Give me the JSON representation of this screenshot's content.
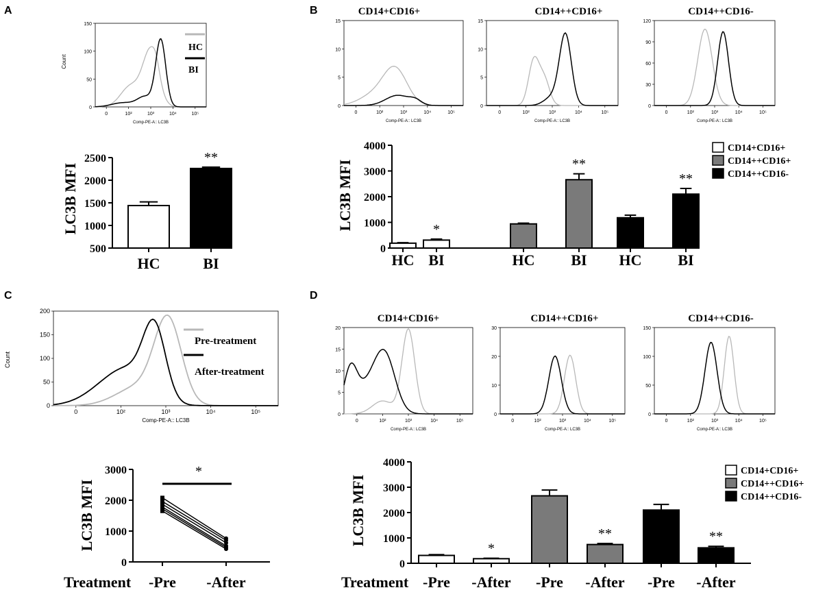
{
  "colors": {
    "white_bar": "#ffffff",
    "gray_bar": "#7a7a7a",
    "black_bar": "#000000",
    "hc_line": "#b8b8b8",
    "bi_line": "#000000"
  },
  "panels": {
    "A": {
      "label": "A"
    },
    "B": {
      "label": "B"
    },
    "C": {
      "label": "C"
    },
    "D": {
      "label": "D"
    }
  },
  "common": {
    "count_label": "Count",
    "comp_label": "Comp-PE-A:: LC3B",
    "mfi_label": "LC3B MFI",
    "treatment_label": "Treatment"
  },
  "legends": {
    "cd_plus_plus": "CD14+CD16+",
    "cd_pp_plus": "CD14++CD16+",
    "cd_pp_minus": "CD14++CD16-",
    "hc": "HC",
    "bi": "BI",
    "pre": "Pre-treatment",
    "after": "After-treatment"
  },
  "chart_data": [
    {
      "id": "A_hist",
      "type": "line",
      "title": "",
      "xlabel": "Comp-PE-A:: LC3B",
      "ylabel": "Count",
      "x_ticks": [
        "0",
        "10²",
        "10³",
        "10⁴",
        "10⁵"
      ],
      "y_ticks": [
        0,
        50,
        100,
        150
      ],
      "ylim": [
        0,
        150
      ],
      "legend": [
        "HC",
        "BI"
      ]
    },
    {
      "id": "A_bar",
      "type": "bar",
      "categories": [
        "HC",
        "BI"
      ],
      "values": [
        1440,
        2260
      ],
      "errors": [
        80,
        30
      ],
      "ylabel": "LC3B MFI",
      "ylim": [
        500,
        2500
      ],
      "y_ticks": [
        500,
        1000,
        1500,
        2000,
        2500
      ],
      "annotations": [
        "",
        "**"
      ]
    },
    {
      "id": "B_hist_1",
      "type": "line",
      "title": "CD14+CD16+",
      "xlabel": "Comp-PE-A:: LC3B",
      "y_ticks": [
        0,
        5,
        10,
        15
      ],
      "ylim": [
        0,
        15
      ],
      "x_ticks": [
        "0",
        "10²",
        "10³",
        "10⁴",
        "10⁵"
      ]
    },
    {
      "id": "B_hist_2",
      "type": "line",
      "title": "CD14++CD16+",
      "xlabel": "Comp-PE-A:: LC3B",
      "y_ticks": [
        0,
        5,
        10,
        15
      ],
      "ylim": [
        0,
        15
      ],
      "x_ticks": [
        "0",
        "10²",
        "10³",
        "10⁴",
        "10⁵"
      ]
    },
    {
      "id": "B_hist_3",
      "type": "line",
      "title": "CD14++CD16-",
      "xlabel": "Comp-PE-A:: LC3B",
      "y_ticks": [
        0,
        30,
        60,
        90,
        120
      ],
      "ylim": [
        0,
        120
      ],
      "x_ticks": [
        "0",
        "10²",
        "10³",
        "10⁴",
        "10⁵"
      ]
    },
    {
      "id": "B_bar",
      "type": "bar",
      "categories": [
        "HC",
        "BI",
        "HC",
        "BI",
        "HC",
        "BI"
      ],
      "values": [
        190,
        310,
        940,
        2660,
        1180,
        2100
      ],
      "errors": [
        20,
        40,
        30,
        230,
        100,
        220
      ],
      "series": [
        "CD14+CD16+",
        "CD14+CD16+",
        "CD14++CD16+",
        "CD14++CD16+",
        "CD14++CD16-",
        "CD14++CD16-"
      ],
      "ylabel": "LC3B MFI",
      "ylim": [
        0,
        4000
      ],
      "y_ticks": [
        0,
        1000,
        2000,
        3000,
        4000
      ],
      "annotations": [
        "",
        "*",
        "",
        "**",
        "",
        "**"
      ],
      "legend": [
        "CD14+CD16+",
        "CD14++CD16+",
        "CD14++CD16-"
      ]
    },
    {
      "id": "C_hist",
      "type": "line",
      "xlabel": "Comp-PE-A:: LC3B",
      "ylabel": "Count",
      "y_ticks": [
        0,
        50,
        100,
        150,
        200
      ],
      "ylim": [
        0,
        200
      ],
      "x_ticks": [
        "0",
        "10²",
        "10³",
        "10⁴",
        "10⁵"
      ],
      "legend": [
        "Pre-treatment",
        "After-treatment"
      ]
    },
    {
      "id": "C_line",
      "type": "line",
      "x": [
        "-Pre",
        "-After"
      ],
      "series": [
        {
          "name": "s1",
          "values": [
            2080,
            760
          ]
        },
        {
          "name": "s2",
          "values": [
            1960,
            700
          ]
        },
        {
          "name": "s3",
          "values": [
            1870,
            620
          ]
        },
        {
          "name": "s4",
          "values": [
            1780,
            520
          ]
        },
        {
          "name": "s5",
          "values": [
            1720,
            470
          ]
        },
        {
          "name": "s6",
          "values": [
            1650,
            420
          ]
        }
      ],
      "ylabel": "LC3B MFI",
      "xlabel": "Treatment",
      "ylim": [
        0,
        3000
      ],
      "y_ticks": [
        0,
        1000,
        2000,
        3000
      ],
      "annotations": [
        "*"
      ]
    },
    {
      "id": "D_hist_1",
      "type": "line",
      "title": "CD14+CD16+",
      "xlabel": "Comp-PE-A:: LC3B",
      "y_ticks": [
        0,
        5,
        10,
        15,
        20
      ],
      "ylim": [
        0,
        20
      ],
      "x_ticks": [
        "0",
        "10²",
        "10³",
        "10⁴",
        "10⁵"
      ]
    },
    {
      "id": "D_hist_2",
      "type": "line",
      "title": "CD14++CD16+",
      "xlabel": "Comp-PE-A:: LC3B",
      "y_ticks": [
        0,
        10,
        20,
        30
      ],
      "ylim": [
        0,
        30
      ],
      "x_ticks": [
        "0",
        "10²",
        "10³",
        "10⁴",
        "10⁵"
      ]
    },
    {
      "id": "D_hist_3",
      "type": "line",
      "title": "CD14++CD16-",
      "xlabel": "Comp-PE-A:: LC3B",
      "y_ticks": [
        0,
        50,
        100,
        150
      ],
      "ylim": [
        0,
        150
      ],
      "x_ticks": [
        "0",
        "10²",
        "10³",
        "10⁴",
        "10⁵"
      ]
    },
    {
      "id": "D_bar",
      "type": "bar",
      "categories": [
        "-Pre",
        "-After",
        "-Pre",
        "-After",
        "-Pre",
        "-After"
      ],
      "values": [
        310,
        180,
        2660,
        740,
        2100,
        610
      ],
      "errors": [
        30,
        20,
        230,
        40,
        220,
        60
      ],
      "series": [
        "CD14+CD16+",
        "CD14+CD16+",
        "CD14++CD16+",
        "CD14++CD16+",
        "CD14++CD16-",
        "CD14++CD16-"
      ],
      "ylabel": "LC3B MFI",
      "xlabel": "Treatment",
      "ylim": [
        0,
        4000
      ],
      "y_ticks": [
        0,
        1000,
        2000,
        3000,
        4000
      ],
      "annotations": [
        "",
        "*",
        "",
        "**",
        "",
        "**"
      ],
      "legend": [
        "CD14+CD16+",
        "CD14++CD16+",
        "CD14++CD16-"
      ]
    }
  ]
}
